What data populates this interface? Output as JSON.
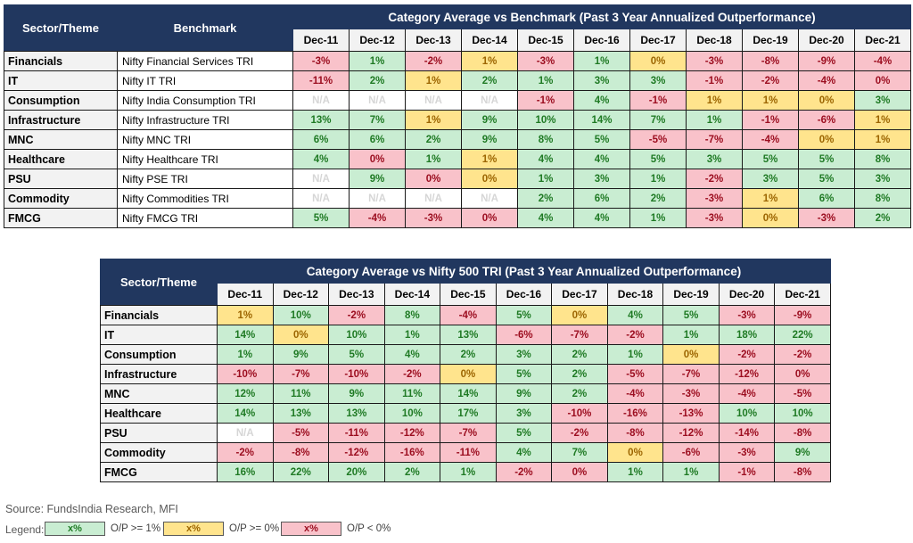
{
  "colors": {
    "navy": "#21375F",
    "green_bg": "#C9EDD2",
    "green_text": "#1F7A24",
    "yellow_bg": "#FFE48D",
    "yellow_text": "#9C6500",
    "pink_bg": "#F9C2CA",
    "pink_text": "#9C0E20",
    "na_text": "#D6D6D6"
  },
  "style_key": {
    "g": "O/P >= 1% (green)",
    "y": "O/P >= 0% (yellow)",
    "p": "O/P < 0% (pink)",
    "n": "N/A (no data)"
  },
  "chart_data": [
    {
      "type": "table",
      "title": "Category Average vs Benchmark (Past 3 Year Annualized Outperformance)",
      "corner_headers": [
        "Sector/Theme",
        "Benchmark"
      ],
      "columns": [
        "Dec-11",
        "Dec-12",
        "Dec-13",
        "Dec-14",
        "Dec-15",
        "Dec-16",
        "Dec-17",
        "Dec-18",
        "Dec-19",
        "Dec-20",
        "Dec-21"
      ],
      "rows": [
        {
          "sector": "Financials",
          "benchmark": "Nifty Financial Services TRI",
          "values": [
            "-3%",
            "1%",
            "-2%",
            "1%",
            "-3%",
            "1%",
            "0%",
            "-3%",
            "-8%",
            "-9%",
            "-4%"
          ],
          "styles": [
            "p",
            "g",
            "p",
            "y",
            "p",
            "g",
            "y",
            "p",
            "p",
            "p",
            "p"
          ]
        },
        {
          "sector": "IT",
          "benchmark": "Nifty IT TRI",
          "values": [
            "-11%",
            "2%",
            "1%",
            "2%",
            "1%",
            "3%",
            "3%",
            "-1%",
            "-2%",
            "-4%",
            "0%"
          ],
          "styles": [
            "p",
            "g",
            "y",
            "g",
            "g",
            "g",
            "g",
            "p",
            "p",
            "p",
            "p"
          ]
        },
        {
          "sector": "Consumption",
          "benchmark": "Nifty India Consumption TRI",
          "values": [
            "N/A",
            "N/A",
            "N/A",
            "N/A",
            "-1%",
            "4%",
            "-1%",
            "1%",
            "1%",
            "0%",
            "3%"
          ],
          "styles": [
            "n",
            "n",
            "n",
            "n",
            "p",
            "g",
            "p",
            "y",
            "y",
            "y",
            "g"
          ]
        },
        {
          "sector": "Infrastructure",
          "benchmark": "Nifty Infrastructure TRI",
          "values": [
            "13%",
            "7%",
            "1%",
            "9%",
            "10%",
            "14%",
            "7%",
            "1%",
            "-1%",
            "-6%",
            "1%"
          ],
          "styles": [
            "g",
            "g",
            "y",
            "g",
            "g",
            "g",
            "g",
            "g",
            "p",
            "p",
            "y"
          ]
        },
        {
          "sector": "MNC",
          "benchmark": "Nifty MNC TRI",
          "values": [
            "6%",
            "6%",
            "2%",
            "9%",
            "8%",
            "5%",
            "-5%",
            "-7%",
            "-4%",
            "0%",
            "1%"
          ],
          "styles": [
            "g",
            "g",
            "g",
            "g",
            "g",
            "g",
            "p",
            "p",
            "p",
            "y",
            "y"
          ]
        },
        {
          "sector": "Healthcare",
          "benchmark": "Nifty Healthcare TRI",
          "values": [
            "4%",
            "0%",
            "1%",
            "1%",
            "4%",
            "4%",
            "5%",
            "3%",
            "5%",
            "5%",
            "8%"
          ],
          "styles": [
            "g",
            "p",
            "g",
            "y",
            "g",
            "g",
            "g",
            "g",
            "g",
            "g",
            "g"
          ]
        },
        {
          "sector": "PSU",
          "benchmark": "Nifty PSE TRI",
          "values": [
            "N/A",
            "9%",
            "0%",
            "0%",
            "1%",
            "3%",
            "1%",
            "-2%",
            "3%",
            "5%",
            "3%"
          ],
          "styles": [
            "n",
            "g",
            "p",
            "y",
            "g",
            "g",
            "g",
            "p",
            "g",
            "g",
            "g"
          ]
        },
        {
          "sector": "Commodity",
          "benchmark": "Nifty Commodities TRI",
          "values": [
            "N/A",
            "N/A",
            "N/A",
            "N/A",
            "2%",
            "6%",
            "2%",
            "-3%",
            "1%",
            "6%",
            "8%"
          ],
          "styles": [
            "n",
            "n",
            "n",
            "n",
            "g",
            "g",
            "g",
            "p",
            "y",
            "g",
            "g"
          ]
        },
        {
          "sector": "FMCG",
          "benchmark": "Nifty FMCG TRI",
          "values": [
            "5%",
            "-4%",
            "-3%",
            "0%",
            "4%",
            "4%",
            "1%",
            "-3%",
            "0%",
            "-3%",
            "2%"
          ],
          "styles": [
            "g",
            "p",
            "p",
            "p",
            "g",
            "g",
            "g",
            "p",
            "y",
            "p",
            "g"
          ]
        }
      ]
    },
    {
      "type": "table",
      "title": "Category Average vs Nifty 500 TRI (Past 3 Year Annualized Outperformance)",
      "corner_headers": [
        "Sector/Theme"
      ],
      "columns": [
        "Dec-11",
        "Dec-12",
        "Dec-13",
        "Dec-14",
        "Dec-15",
        "Dec-16",
        "Dec-17",
        "Dec-18",
        "Dec-19",
        "Dec-20",
        "Dec-21"
      ],
      "rows": [
        {
          "sector": "Financials",
          "values": [
            "1%",
            "10%",
            "-2%",
            "8%",
            "-4%",
            "5%",
            "0%",
            "4%",
            "5%",
            "-3%",
            "-9%"
          ],
          "styles": [
            "y",
            "g",
            "p",
            "g",
            "p",
            "g",
            "y",
            "g",
            "g",
            "p",
            "p"
          ]
        },
        {
          "sector": "IT",
          "values": [
            "14%",
            "0%",
            "10%",
            "1%",
            "13%",
            "-6%",
            "-7%",
            "-2%",
            "1%",
            "18%",
            "22%"
          ],
          "styles": [
            "g",
            "y",
            "g",
            "g",
            "g",
            "p",
            "p",
            "p",
            "g",
            "g",
            "g"
          ]
        },
        {
          "sector": "Consumption",
          "values": [
            "1%",
            "9%",
            "5%",
            "4%",
            "2%",
            "3%",
            "2%",
            "1%",
            "0%",
            "-2%",
            "-2%"
          ],
          "styles": [
            "g",
            "g",
            "g",
            "g",
            "g",
            "g",
            "g",
            "g",
            "y",
            "p",
            "p"
          ]
        },
        {
          "sector": "Infrastructure",
          "values": [
            "-10%",
            "-7%",
            "-10%",
            "-2%",
            "0%",
            "5%",
            "2%",
            "-5%",
            "-7%",
            "-12%",
            "0%"
          ],
          "styles": [
            "p",
            "p",
            "p",
            "p",
            "y",
            "g",
            "g",
            "p",
            "p",
            "p",
            "p"
          ]
        },
        {
          "sector": "MNC",
          "values": [
            "12%",
            "11%",
            "9%",
            "11%",
            "14%",
            "9%",
            "2%",
            "-4%",
            "-3%",
            "-4%",
            "-5%"
          ],
          "styles": [
            "g",
            "g",
            "g",
            "g",
            "g",
            "g",
            "g",
            "p",
            "p",
            "p",
            "p"
          ]
        },
        {
          "sector": "Healthcare",
          "values": [
            "14%",
            "13%",
            "13%",
            "10%",
            "17%",
            "3%",
            "-10%",
            "-16%",
            "-13%",
            "10%",
            "10%"
          ],
          "styles": [
            "g",
            "g",
            "g",
            "g",
            "g",
            "g",
            "p",
            "p",
            "p",
            "g",
            "g"
          ]
        },
        {
          "sector": "PSU",
          "values": [
            "N/A",
            "-5%",
            "-11%",
            "-12%",
            "-7%",
            "5%",
            "-2%",
            "-8%",
            "-12%",
            "-14%",
            "-8%"
          ],
          "styles": [
            "n",
            "p",
            "p",
            "p",
            "p",
            "g",
            "p",
            "p",
            "p",
            "p",
            "p"
          ]
        },
        {
          "sector": "Commodity",
          "values": [
            "-2%",
            "-8%",
            "-12%",
            "-16%",
            "-11%",
            "4%",
            "7%",
            "0%",
            "-6%",
            "-3%",
            "9%"
          ],
          "styles": [
            "p",
            "p",
            "p",
            "p",
            "p",
            "g",
            "g",
            "y",
            "p",
            "p",
            "g"
          ]
        },
        {
          "sector": "FMCG",
          "values": [
            "16%",
            "22%",
            "20%",
            "2%",
            "1%",
            "-2%",
            "0%",
            "1%",
            "1%",
            "-1%",
            "-8%"
          ],
          "styles": [
            "g",
            "g",
            "g",
            "g",
            "g",
            "p",
            "p",
            "g",
            "g",
            "p",
            "p"
          ]
        }
      ]
    }
  ],
  "footer": {
    "source": "Source: FundsIndia Research, MFI",
    "legend_label": "Legend:",
    "legend": [
      {
        "swatch_text": "x%",
        "style": "green",
        "label": "O/P >= 1%"
      },
      {
        "swatch_text": "x%",
        "style": "yellow",
        "label": "O/P >= 0%"
      },
      {
        "swatch_text": "x%",
        "style": "pink",
        "label": "O/P < 0%"
      }
    ]
  }
}
